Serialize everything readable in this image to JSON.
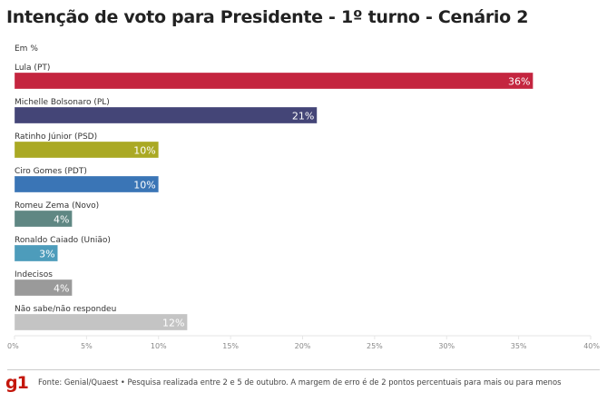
{
  "header": {
    "title": "Intenção de voto para Presidente - 1º turno - Cenário 2",
    "subtitle": "Em %"
  },
  "footer": {
    "logo": "g1",
    "source": "Fonte: Genial/Quaest • Pesquisa realizada entre 2 e 5 de outubro. A margem de erro é de 2 pontos percentuais para mais ou para menos"
  },
  "chart_data": {
    "type": "bar",
    "orientation": "horizontal",
    "title": "Intenção de voto para Presidente - 1º turno - Cenário 2",
    "subtitle": "Em %",
    "categories": [
      "Lula (PT)",
      "Michelle Bolsonaro (PL)",
      "Ratinho Júnior (PSD)",
      "Ciro Gomes (PDT)",
      "Romeu Zema (Novo)",
      "Ronaldo Caiado (União)",
      "Indecisos",
      "Não sabe/não respondeu"
    ],
    "values": [
      36,
      21,
      10,
      10,
      4,
      3,
      4,
      12
    ],
    "value_labels": [
      "36%",
      "21%",
      "10%",
      "10%",
      "4%",
      "3%",
      "4%",
      "12%"
    ],
    "colors": [
      "#c4253f",
      "#444577",
      "#aaa924",
      "#3a75b6",
      "#5f8783",
      "#4d9cbb",
      "#9a9a9a",
      "#c4c4c4"
    ],
    "xlim": [
      0,
      40
    ],
    "xticks": [
      0,
      5,
      10,
      15,
      20,
      25,
      30,
      35,
      40
    ],
    "xtick_labels": [
      "0%",
      "5%",
      "10%",
      "15%",
      "20%",
      "25%",
      "30%",
      "35%",
      "40%"
    ],
    "xlabel": "",
    "ylabel": "",
    "grid": false,
    "legend": "none"
  }
}
